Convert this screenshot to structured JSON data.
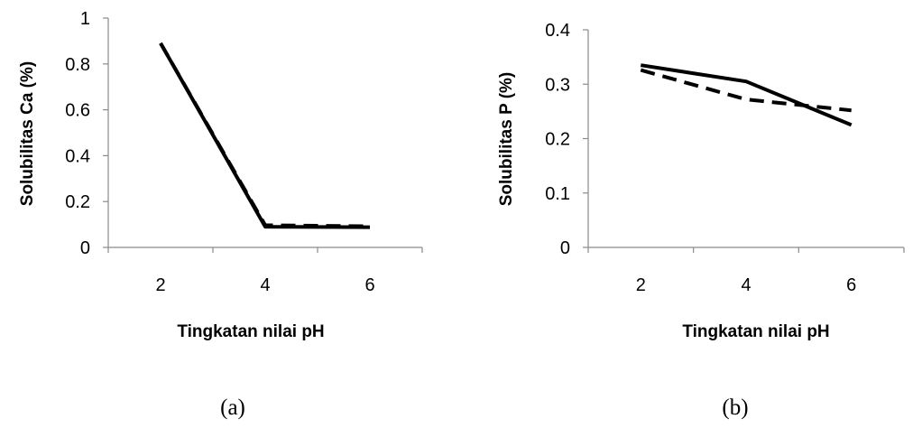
{
  "chart_data": [
    {
      "type": "line",
      "panel_label": "(a)",
      "xlabel": "Tingkatan nilai pH",
      "ylabel": "Solubilitas Ca (%)",
      "categories": [
        "2",
        "4",
        "6"
      ],
      "ylim": [
        0,
        1
      ],
      "yticks": [
        "0",
        "0.2",
        "0.4",
        "0.6",
        "0.8",
        "1"
      ],
      "grid": false,
      "legend": "none",
      "series": [
        {
          "values": [
            0.89,
            0.09,
            0.088
          ],
          "style": "solid",
          "color": "#000000"
        },
        {
          "values": [
            0.89,
            0.097,
            0.092
          ],
          "style": "dashed",
          "color": "#000000"
        }
      ]
    },
    {
      "type": "line",
      "panel_label": "(b)",
      "xlabel": "Tingkatan nilai pH",
      "ylabel": "Solubilitas P (%)",
      "categories": [
        "2",
        "4",
        "6"
      ],
      "ylim": [
        0,
        0.4
      ],
      "yticks": [
        "0",
        "0.1",
        "0.2",
        "0.3",
        "0.4"
      ],
      "grid": false,
      "legend": "none",
      "series": [
        {
          "values": [
            0.335,
            0.305,
            0.225
          ],
          "style": "solid",
          "color": "#000000"
        },
        {
          "values": [
            0.326,
            0.272,
            0.252
          ],
          "style": "dashed",
          "color": "#000000"
        }
      ]
    }
  ]
}
